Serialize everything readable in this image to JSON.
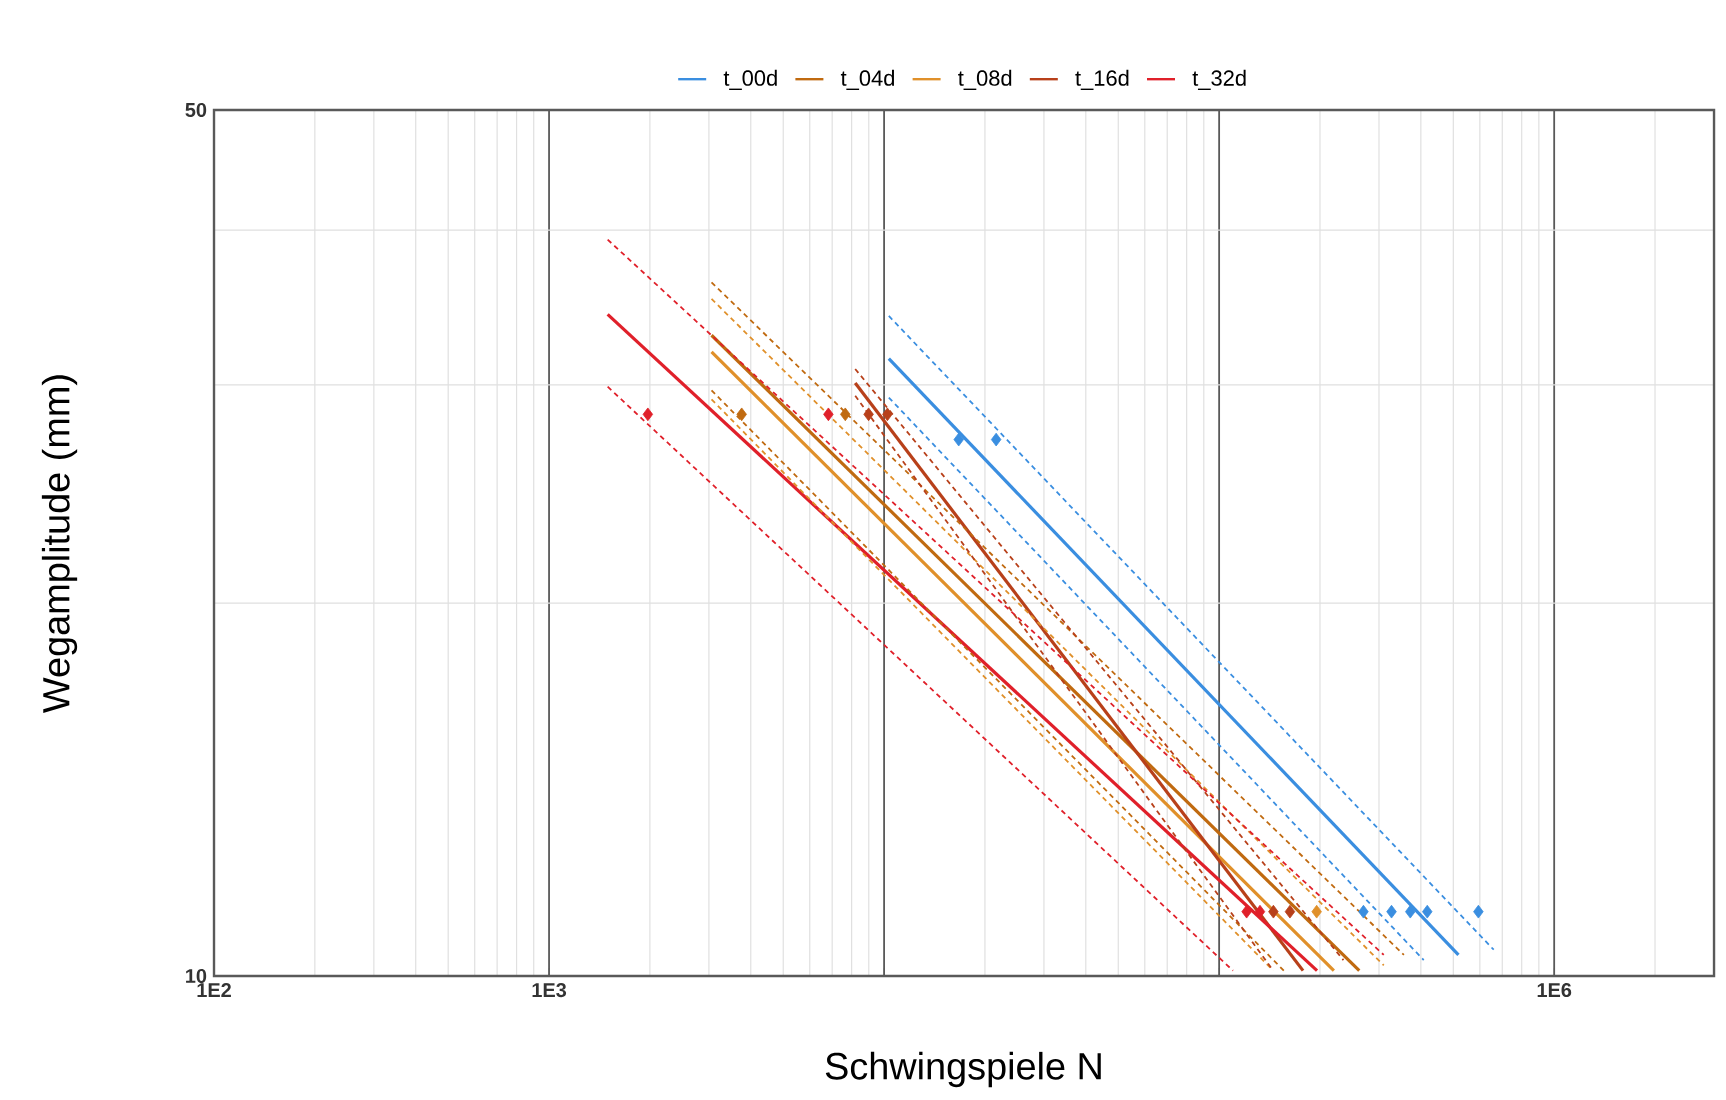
{
  "chart_data": {
    "type": "line",
    "xlabel": "Schwingspiele N",
    "ylabel": "Wegamplitude (mm)",
    "log": "xy",
    "grid": true,
    "legend": "top",
    "xlim": [
      100,
      3000000
    ],
    "ylim": [
      10,
      50
    ],
    "xticks": [
      {
        "value": 100,
        "label": "1E2"
      },
      {
        "value": 1000,
        "label": "1E3"
      },
      {
        "value": 10000,
        "label": null
      },
      {
        "value": 100000,
        "label": null
      },
      {
        "value": 1000000,
        "label": "1E6"
      }
    ],
    "yticks": [
      10,
      50
    ],
    "series": [
      {
        "name": "t_00d",
        "color": "#3a8ee0",
        "line_style": "solid",
        "marker": "none",
        "x": [
          10330,
          518000
        ],
        "values": [
          31.5,
          10.4
        ]
      },
      {
        "name": "t_04d",
        "color": "#c06a10",
        "line_style": "solid",
        "marker": "none",
        "x": [
          3055,
          262000
        ],
        "values": [
          32.9,
          10.1
        ]
      },
      {
        "name": "t_08d",
        "color": "#e0902a",
        "line_style": "solid",
        "marker": "none",
        "x": [
          3055,
          220000
        ],
        "values": [
          31.9,
          10.1
        ]
      },
      {
        "name": "t_16d",
        "color": "#b8401a",
        "line_style": "solid",
        "marker": "none",
        "x": [
          8200,
          178000
        ],
        "values": [
          30.1,
          10.1
        ]
      },
      {
        "name": "t_32d",
        "color": "#e0202a",
        "line_style": "solid",
        "marker": "none",
        "x": [
          1496,
          196000
        ],
        "values": [
          34.2,
          10.1
        ]
      },
      {
        "color": "#3a8ee0",
        "line_style": "dashed",
        "marker": "none",
        "x": [
          10330,
          660000
        ],
        "values": [
          34.1,
          10.5
        ]
      },
      {
        "color": "#3a8ee0",
        "line_style": "dashed",
        "marker": "none",
        "x": [
          10330,
          408000
        ],
        "values": [
          29.3,
          10.3
        ]
      },
      {
        "color": "#c06a10",
        "line_style": "dashed",
        "marker": "none",
        "x": [
          3055,
          356000
        ],
        "values": [
          36.3,
          10.4
        ]
      },
      {
        "color": "#c06a10",
        "line_style": "dashed",
        "marker": "none",
        "x": [
          3055,
          156000
        ],
        "values": [
          29.7,
          10.1
        ]
      },
      {
        "color": "#e0902a",
        "line_style": "dashed",
        "marker": "none",
        "x": [
          3055,
          310000
        ],
        "values": [
          35.2,
          10.2
        ]
      },
      {
        "color": "#e0902a",
        "line_style": "dashed",
        "marker": "none",
        "x": [
          3055,
          145000
        ],
        "values": [
          29.2,
          10.1
        ]
      },
      {
        "color": "#b8401a",
        "line_style": "dashed",
        "marker": "none",
        "x": [
          8200,
          235000
        ],
        "values": [
          30.9,
          10.3
        ]
      },
      {
        "color": "#b8401a",
        "line_style": "dashed",
        "marker": "none",
        "x": [
          8200,
          145000
        ],
        "values": [
          29.4,
          10.1
        ]
      },
      {
        "color": "#e0202a",
        "line_style": "dashed",
        "marker": "none",
        "x": [
          1496,
          310000
        ],
        "values": [
          39.3,
          10.4
        ]
      },
      {
        "color": "#e0202a",
        "line_style": "dashed",
        "marker": "none",
        "x": [
          1496,
          110000
        ],
        "values": [
          29.9,
          10.1
        ]
      },
      {
        "type": "scatter",
        "color": "#3a8ee0",
        "marker": "diamond",
        "x": [
          16700,
          21600,
          269600,
          327000,
          372000,
          418000,
          594000
        ],
        "values": [
          27.1,
          27.1,
          11.27,
          11.27,
          11.27,
          11.27,
          11.27
        ]
      },
      {
        "type": "scatter",
        "color": "#c06a10",
        "marker": "diamond",
        "x": [
          3758,
          7660
        ],
        "values": [
          28.4,
          28.4
        ]
      },
      {
        "type": "scatter",
        "color": "#e0902a",
        "marker": "diamond",
        "x": [
          195500
        ],
        "values": [
          11.27
        ]
      },
      {
        "type": "scatter",
        "color": "#b8401a",
        "marker": "diamond",
        "x": [
          8990,
          10230,
          145200,
          162700
        ],
        "values": [
          28.4,
          28.4,
          11.27,
          11.27
        ]
      },
      {
        "type": "scatter",
        "color": "#e0202a",
        "marker": "diamond",
        "x": [
          1972,
          6820,
          120800,
          132400
        ],
        "values": [
          28.4,
          28.4,
          11.27,
          11.27
        ]
      }
    ]
  }
}
